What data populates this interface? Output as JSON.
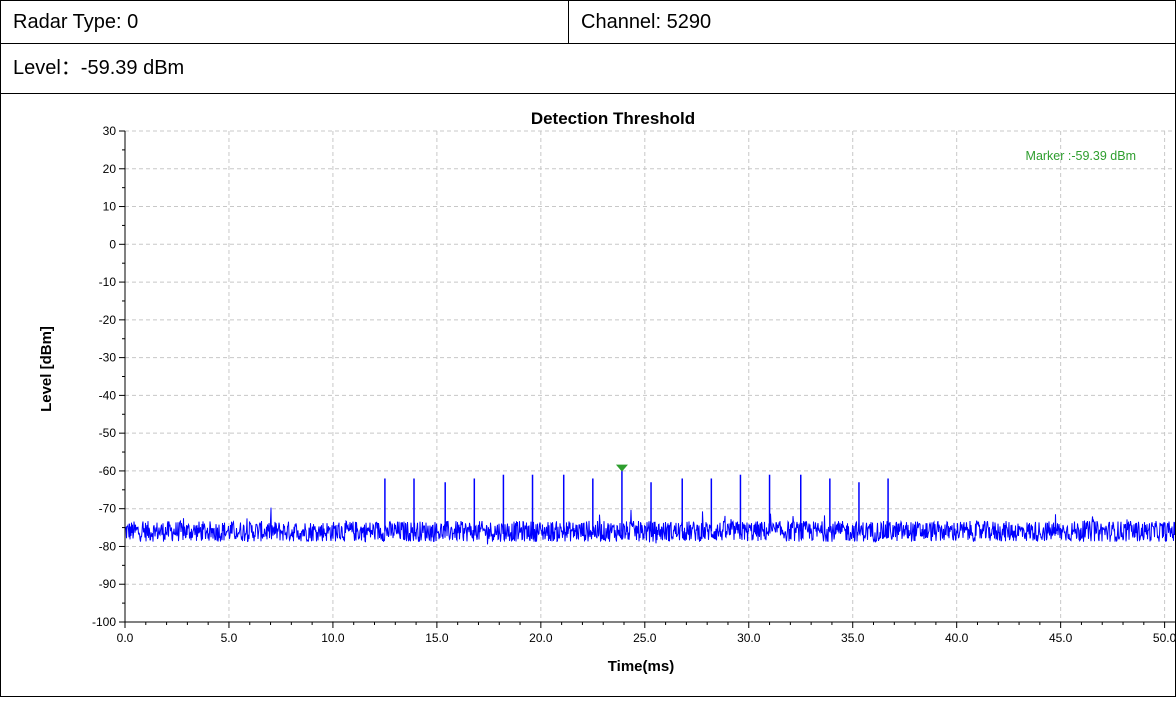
{
  "header": {
    "radar_type_label": "Radar Type: 0",
    "channel_label": "Channel: 5290",
    "level_label": "Level：-59.39 dBm"
  },
  "chart_data": {
    "type": "line",
    "title": "Detection Threshold",
    "xlabel": "Time(ms)",
    "ylabel": "Level [dBm]",
    "xlim": [
      0,
      50.5
    ],
    "ylim": [
      -100,
      30
    ],
    "xticks": [
      0.0,
      5.0,
      10.0,
      15.0,
      20.0,
      25.0,
      30.0,
      35.0,
      40.0,
      45.0,
      50.0
    ],
    "xtick_labels": [
      "0.0",
      "5.0",
      "10.0",
      "15.0",
      "20.0",
      "25.0",
      "30.0",
      "35.0",
      "40.0",
      "45.0",
      "50.0"
    ],
    "yticks": [
      30,
      20,
      10,
      0,
      -10,
      -20,
      -30,
      -40,
      -50,
      -60,
      -70,
      -80,
      -90,
      -100
    ],
    "ytick_labels": [
      "30",
      "20",
      "10",
      "0",
      "-10",
      "-20",
      "-30",
      "-40",
      "-50",
      "-60",
      "-70",
      "-80",
      "-90",
      "-100"
    ],
    "grid": true,
    "noise_floor_dbm": -76,
    "pulses": [
      {
        "t": 12.5,
        "level": -62
      },
      {
        "t": 13.9,
        "level": -62
      },
      {
        "t": 15.4,
        "level": -63
      },
      {
        "t": 16.8,
        "level": -62
      },
      {
        "t": 18.2,
        "level": -61
      },
      {
        "t": 19.6,
        "level": -61
      },
      {
        "t": 21.1,
        "level": -61
      },
      {
        "t": 22.5,
        "level": -62
      },
      {
        "t": 23.9,
        "level": -59.39
      },
      {
        "t": 25.3,
        "level": -63
      },
      {
        "t": 26.8,
        "level": -62
      },
      {
        "t": 28.2,
        "level": -62
      },
      {
        "t": 29.6,
        "level": -61
      },
      {
        "t": 31.0,
        "level": -61
      },
      {
        "t": 32.5,
        "level": -61
      },
      {
        "t": 33.9,
        "level": -62
      },
      {
        "t": 35.3,
        "level": -63
      },
      {
        "t": 36.7,
        "level": -62
      }
    ],
    "marker": {
      "t": 23.9,
      "level": -59.39,
      "label": "Marker :-59.39 dBm"
    },
    "colors": {
      "series": "#0000ff",
      "marker": "#2e9e2e",
      "grid": "#c8c8c8",
      "axis": "#000000"
    }
  }
}
